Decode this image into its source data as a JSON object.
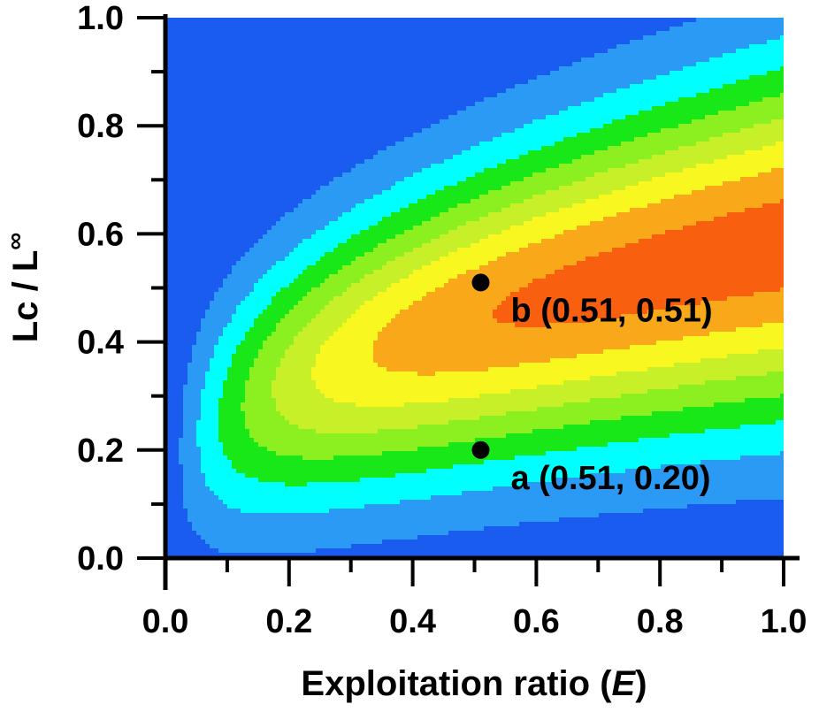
{
  "chart_data": {
    "type": "contour",
    "xlabel_main": "Exploitation ratio (",
    "xlabel_var": "E",
    "xlabel_end": ")",
    "ylabel": "Lc / L",
    "ylabel_sup": "∞",
    "xlim": [
      0,
      1
    ],
    "ylim": [
      0,
      1
    ],
    "xticks": [
      {
        "value": 0.0,
        "label": "0.0"
      },
      {
        "value": 0.2,
        "label": "0.2"
      },
      {
        "value": 0.4,
        "label": "0.4"
      },
      {
        "value": 0.6,
        "label": "0.6"
      },
      {
        "value": 0.8,
        "label": "0.8"
      },
      {
        "value": 1.0,
        "label": "1.0"
      }
    ],
    "yticks": [
      {
        "value": 0.0,
        "label": "0.0"
      },
      {
        "value": 0.2,
        "label": "0.2"
      },
      {
        "value": 0.4,
        "label": "0.4"
      },
      {
        "value": 0.6,
        "label": "0.6"
      },
      {
        "value": 0.8,
        "label": "0.8"
      },
      {
        "value": 1.0,
        "label": "1.0"
      }
    ],
    "minor_tick_step": 0.1,
    "color_levels": [
      "#1b5cf0",
      "#2a9af4",
      "#00ffff",
      "#18e818",
      "#8cf020",
      "#c8f028",
      "#f8f820",
      "#f8a818",
      "#f86010"
    ],
    "points": [
      {
        "label": "a (0.51, 0.20)",
        "x": 0.51,
        "y": 0.2
      },
      {
        "label": "b (0.51, 0.51)",
        "x": 0.51,
        "y": 0.51
      }
    ]
  }
}
